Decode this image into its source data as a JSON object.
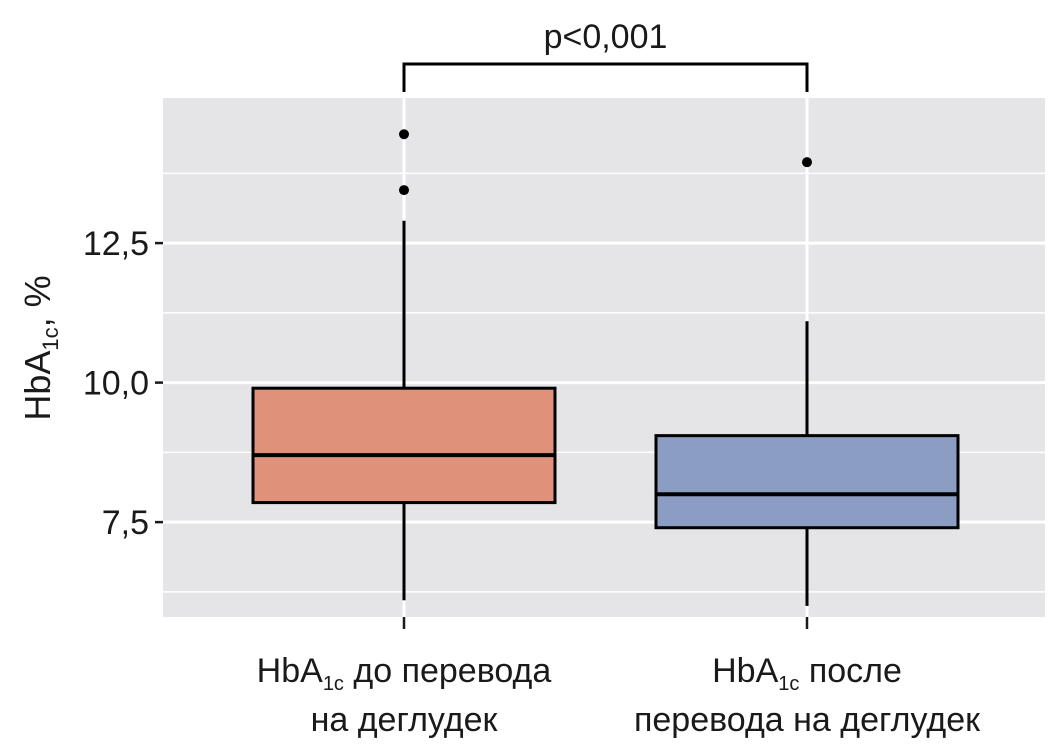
{
  "chart_data": {
    "type": "box",
    "ylabel": {
      "main": "HbA",
      "sub": "1c",
      "rest": ", %"
    },
    "ylim": [
      5.8,
      15.1
    ],
    "yticks": [
      {
        "value": 7.5,
        "label": "7,5"
      },
      {
        "value": 10.0,
        "label": "10,0"
      },
      {
        "value": 12.5,
        "label": "12,5"
      }
    ],
    "minor_gridlines": [
      6.25,
      8.75,
      11.25,
      13.75
    ],
    "grid": true,
    "panel_color": "#e5e5e8",
    "significance": {
      "text": "p<0,001",
      "between": [
        0,
        1
      ]
    },
    "categories": [
      {
        "line1_main": "HbA",
        "line1_sub": "1c",
        "line1_rest": " до перевода",
        "line2": "на деглудек",
        "color": "#e0917a",
        "whisker_low": 6.1,
        "q1": 7.85,
        "median": 8.7,
        "q3": 9.9,
        "whisker_high": 12.9,
        "outliers": [
          14.45,
          13.45
        ]
      },
      {
        "line1_main": "HbA",
        "line1_sub": "1c",
        "line1_rest": " после",
        "line2": "перевода на деглудек",
        "color": "#8b9dc3",
        "whisker_low": 6.0,
        "q1": 7.4,
        "median": 8.0,
        "q3": 9.05,
        "whisker_high": 11.1,
        "outliers": [
          13.95
        ]
      }
    ]
  }
}
